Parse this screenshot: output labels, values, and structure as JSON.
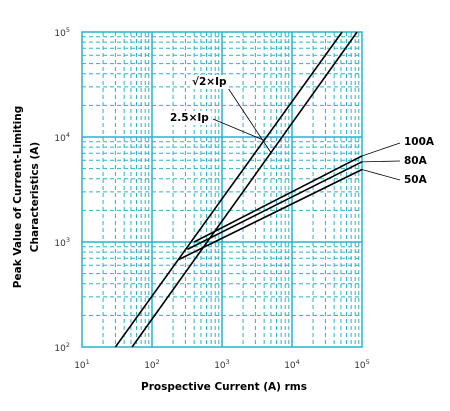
{
  "chart_data": {
    "type": "line",
    "title": "",
    "xlabel": "Prospective Current (A) rms",
    "ylabel_line1": "Peak Value of Current-Limiting",
    "ylabel_line2": "Characteristics (A)",
    "x_scale": "log",
    "y_scale": "log",
    "xlim": [
      10,
      100000
    ],
    "ylim": [
      100,
      100000
    ],
    "x_ticks": [
      {
        "base": "10",
        "exp": "1"
      },
      {
        "base": "10",
        "exp": "2"
      },
      {
        "base": "10",
        "exp": "3"
      },
      {
        "base": "10",
        "exp": "4"
      },
      {
        "base": "10",
        "exp": "5"
      }
    ],
    "y_ticks": [
      {
        "base": "10",
        "exp": "2"
      },
      {
        "base": "10",
        "exp": "3"
      },
      {
        "base": "10",
        "exp": "4"
      },
      {
        "base": "10",
        "exp": "5"
      }
    ],
    "grid": true,
    "grid_color": "#29b3c9",
    "line_color": "#000000",
    "series": [
      {
        "name": "√2×Ip",
        "x": [
          52,
          85000
        ],
        "y": [
          100,
          100000
        ]
      },
      {
        "name": "2.5×Ip",
        "x": [
          30,
          52000
        ],
        "y": [
          100,
          100000
        ]
      },
      {
        "name": "100A",
        "x": [
          400,
          100000
        ],
        "y": [
          1000,
          6600
        ]
      },
      {
        "name": "80A",
        "x": [
          320,
          100000
        ],
        "y": [
          850,
          5800
        ]
      },
      {
        "name": "50A",
        "x": [
          240,
          100000
        ],
        "y": [
          680,
          4900
        ]
      }
    ],
    "annotations": [
      {
        "text": "√2×Ip",
        "series": "√2×Ip"
      },
      {
        "text": "2.5×Ip",
        "series": "2.5×Ip"
      },
      {
        "text": "100A",
        "series": "100A"
      },
      {
        "text": "80A",
        "series": "80A"
      },
      {
        "text": "50A",
        "series": "50A"
      }
    ]
  }
}
